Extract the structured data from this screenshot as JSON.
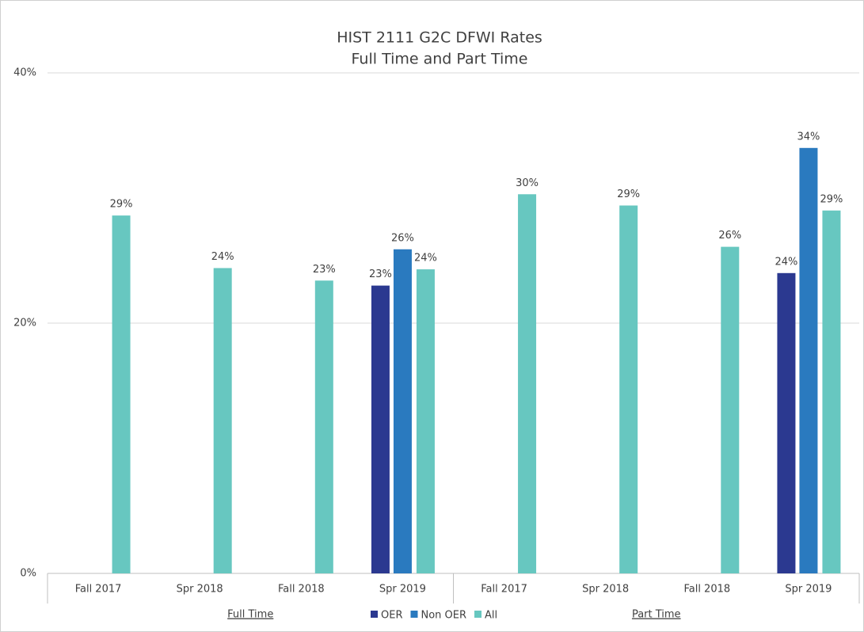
{
  "chart_data": {
    "type": "bar",
    "title": "HIST 2111 G2C DFWI Rates",
    "subtitle": "Full Time and Part Time",
    "categories": [
      "Fall 2017",
      "Spr 2018",
      "Fall 2018",
      "Spr 2019",
      "Fall 2017",
      "Spr 2018",
      "Fall 2018",
      "Spr 2019"
    ],
    "groups": [
      "Full Time",
      "Part Time"
    ],
    "series": [
      {
        "name": "OER",
        "color": "#2b3990",
        "values": [
          null,
          null,
          null,
          23.0,
          null,
          null,
          null,
          24.0
        ],
        "value_labels": [
          null,
          null,
          null,
          "23%",
          null,
          null,
          null,
          "24%"
        ]
      },
      {
        "name": "Non OER",
        "color": "#2a7abf",
        "values": [
          null,
          null,
          null,
          25.9,
          null,
          null,
          null,
          34.0
        ],
        "value_labels": [
          null,
          null,
          null,
          "26%",
          null,
          null,
          null,
          "34%"
        ]
      },
      {
        "name": "All",
        "color": "#67c7c0",
        "values": [
          28.6,
          24.4,
          23.4,
          24.3,
          30.3,
          29.4,
          26.1,
          29.0
        ],
        "value_labels": [
          "29%",
          "24%",
          "23%",
          "24%",
          "30%",
          "29%",
          "26%",
          "29%"
        ]
      }
    ],
    "ylim": [
      0,
      40
    ],
    "yticks": [
      {
        "value": 0,
        "label": "0%"
      },
      {
        "value": 20,
        "label": "20%"
      },
      {
        "value": 40,
        "label": "40%"
      }
    ],
    "grid": true,
    "legend": "bottom"
  }
}
